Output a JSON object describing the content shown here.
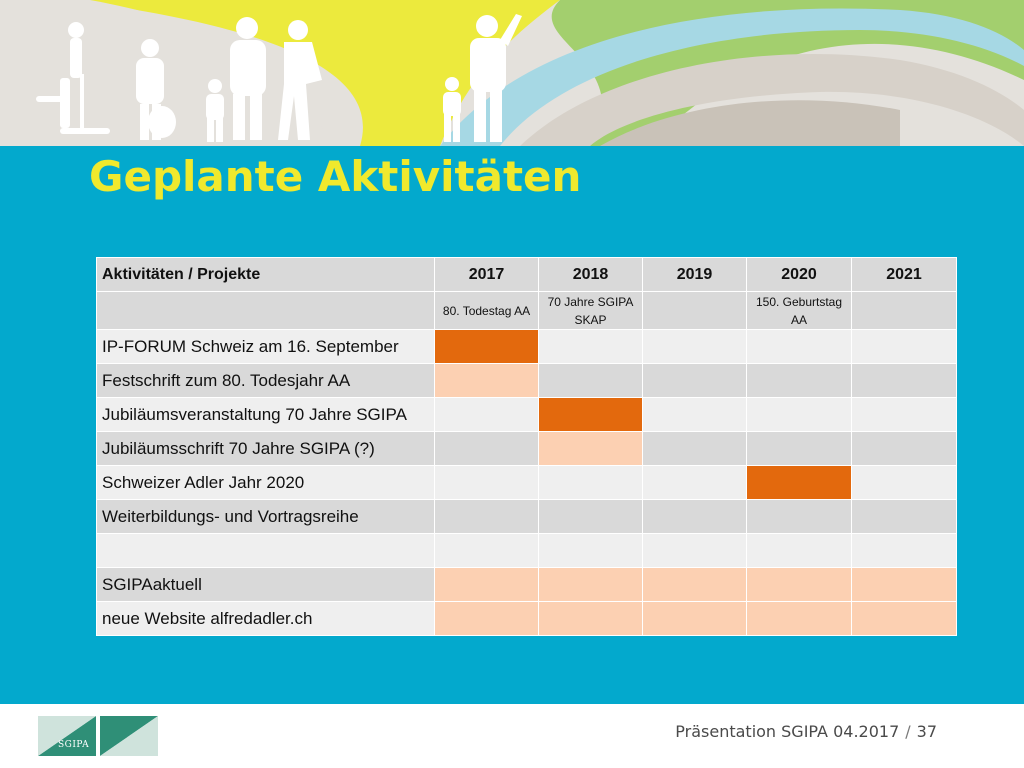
{
  "slide": {
    "title": "Geplante Aktivitäten",
    "footer_text": "Präsentation SGIPA 04.2017",
    "separator": "/",
    "page_number": "37",
    "logo_text": "SGIPA"
  },
  "colors": {
    "background_blue": "#03a9cd",
    "title_yellow": "#f0e92d",
    "bar_dark_orange": "#e3690d",
    "bar_light_orange": "#fcd0b2",
    "header_gray": "#d9d9d9",
    "row_light_gray": "#efefef"
  },
  "table": {
    "header": [
      "Aktivitäten / Projekte",
      "2017",
      "2018",
      "2019",
      "2020",
      "2021"
    ],
    "subheader": [
      "",
      "80. Todestag AA",
      "70 Jahre SGIPA SKAP",
      "",
      "150. Geburtstag AA",
      ""
    ],
    "rows": [
      {
        "label": "IP-FORUM Schweiz am 16. September",
        "cells": [
          "dark",
          "",
          "",
          "",
          ""
        ]
      },
      {
        "label": "Festschrift zum 80. Todesjahr AA",
        "cells": [
          "light",
          "",
          "",
          "",
          ""
        ]
      },
      {
        "label": "Jubiläumsveranstaltung 70 Jahre SGIPA",
        "cells": [
          "",
          "dark",
          "",
          "",
          ""
        ]
      },
      {
        "label": "Jubiläumsschrift 70 Jahre SGIPA (?)",
        "cells": [
          "",
          "light",
          "",
          "",
          ""
        ]
      },
      {
        "label": "Schweizer Adler Jahr 2020",
        "cells": [
          "",
          "",
          "",
          "dark",
          ""
        ]
      },
      {
        "label": "Weiterbildungs- und Vortragsreihe",
        "cells": [
          "",
          "",
          "",
          "",
          ""
        ]
      },
      {
        "label": "",
        "cells": [
          "",
          "",
          "",
          "",
          ""
        ]
      },
      {
        "label": "SGIPAaktuell",
        "cells": [
          "light",
          "light",
          "light",
          "light",
          "light"
        ]
      },
      {
        "label": "neue Website alfredadler.ch",
        "cells": [
          "light",
          "light",
          "light",
          "light",
          "light"
        ]
      }
    ]
  }
}
